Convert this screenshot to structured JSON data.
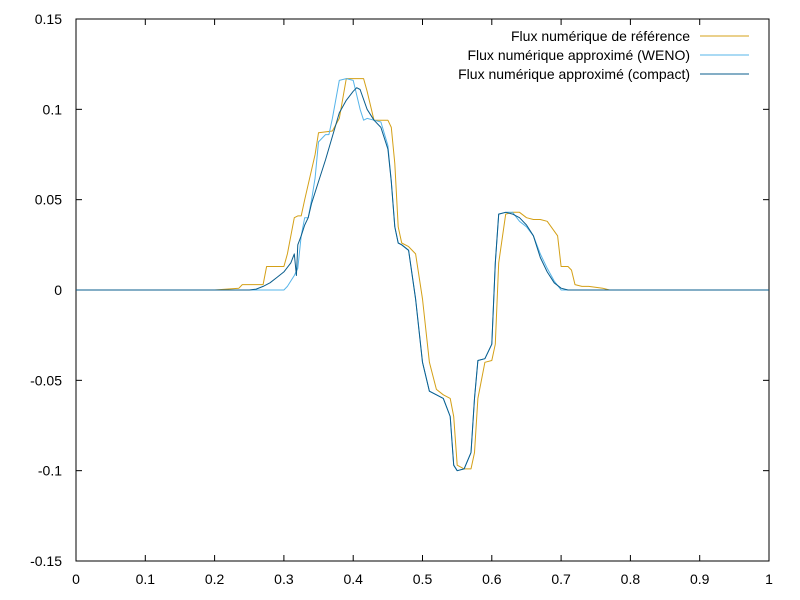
{
  "chart_data": {
    "type": "line",
    "title": "",
    "xlabel": "",
    "ylabel": "",
    "xlim": [
      0,
      1
    ],
    "ylim": [
      -0.15,
      0.15
    ],
    "xticks": [
      "0",
      "0.1",
      "0.2",
      "0.3",
      "0.4",
      "0.5",
      "0.6",
      "0.7",
      "0.8",
      "0.9",
      "1"
    ],
    "yticks": [
      "0.15",
      "0.1",
      "0.05",
      "0",
      "-0.05",
      "-0.1",
      "-0.15"
    ],
    "grid": false,
    "legend_position": "top-right",
    "series": [
      {
        "name": "Flux numérique de référence",
        "color": "#d4a017",
        "x": [
          0,
          0.2,
          0.235,
          0.24,
          0.27,
          0.275,
          0.3,
          0.305,
          0.315,
          0.32,
          0.325,
          0.33,
          0.345,
          0.35,
          0.37,
          0.38,
          0.39,
          0.4,
          0.41,
          0.415,
          0.42,
          0.43,
          0.44,
          0.45,
          0.455,
          0.46,
          0.465,
          0.47,
          0.48,
          0.49,
          0.5,
          0.51,
          0.52,
          0.53,
          0.54,
          0.545,
          0.55,
          0.56,
          0.57,
          0.575,
          0.58,
          0.59,
          0.6,
          0.605,
          0.61,
          0.62,
          0.63,
          0.64,
          0.65,
          0.66,
          0.67,
          0.68,
          0.695,
          0.7,
          0.71,
          0.715,
          0.72,
          0.73,
          0.735,
          0.74,
          0.76,
          0.765,
          0.77,
          0.8,
          1
        ],
        "y": [
          0,
          0,
          0.001,
          0.003,
          0.003,
          0.013,
          0.013,
          0.02,
          0.04,
          0.041,
          0.041,
          0.05,
          0.075,
          0.087,
          0.088,
          0.095,
          0.117,
          0.117,
          0.117,
          0.117,
          0.11,
          0.094,
          0.094,
          0.094,
          0.09,
          0.07,
          0.035,
          0.026,
          0.024,
          0.02,
          -0.005,
          -0.04,
          -0.055,
          -0.058,
          -0.06,
          -0.07,
          -0.097,
          -0.099,
          -0.099,
          -0.09,
          -0.06,
          -0.04,
          -0.039,
          -0.03,
          0.015,
          0.042,
          0.043,
          0.043,
          0.04,
          0.039,
          0.039,
          0.038,
          0.03,
          0.013,
          0.013,
          0.011,
          0.003,
          0.002,
          0.002,
          0.002,
          0.001,
          0.0005,
          0,
          0,
          0
        ]
      },
      {
        "name": "Flux numérique approximé (WENO)",
        "color": "#56b4e9",
        "x": [
          0,
          0.28,
          0.3,
          0.305,
          0.31,
          0.315,
          0.32,
          0.325,
          0.33,
          0.335,
          0.34,
          0.345,
          0.35,
          0.36,
          0.365,
          0.37,
          0.38,
          0.39,
          0.4,
          0.41,
          0.415,
          0.42,
          0.43,
          0.44,
          0.45,
          0.455,
          0.46,
          0.465,
          0.47,
          0.48,
          0.49,
          0.5,
          0.51,
          0.52,
          0.53,
          0.54,
          0.545,
          0.55,
          0.56,
          0.57,
          0.575,
          0.58,
          0.59,
          0.6,
          0.605,
          0.61,
          0.62,
          0.63,
          0.64,
          0.65,
          0.66,
          0.67,
          0.68,
          0.69,
          0.7,
          0.71,
          0.72,
          0.73,
          0.74,
          1
        ],
        "y": [
          0,
          0,
          0.0,
          0.002,
          0.005,
          0.008,
          0.012,
          0.03,
          0.04,
          0.04,
          0.05,
          0.062,
          0.082,
          0.086,
          0.086,
          0.095,
          0.116,
          0.117,
          0.116,
          0.1,
          0.094,
          0.095,
          0.094,
          0.093,
          0.08,
          0.06,
          0.035,
          0.026,
          0.025,
          0.022,
          -0.005,
          -0.04,
          -0.056,
          -0.058,
          -0.06,
          -0.07,
          -0.097,
          -0.1,
          -0.099,
          -0.09,
          -0.06,
          -0.039,
          -0.038,
          -0.03,
          0.015,
          0.042,
          0.043,
          0.043,
          0.038,
          0.035,
          0.03,
          0.02,
          0.012,
          0.005,
          0.0,
          0.0,
          0.0,
          0.0,
          0.0,
          0
        ]
      },
      {
        "name": "Flux numérique approximé (compact)",
        "color": "#0a5d8c",
        "x": [
          0,
          0.25,
          0.26,
          0.27,
          0.28,
          0.29,
          0.3,
          0.31,
          0.315,
          0.318,
          0.32,
          0.325,
          0.33,
          0.335,
          0.34,
          0.35,
          0.36,
          0.37,
          0.38,
          0.39,
          0.4,
          0.405,
          0.41,
          0.42,
          0.43,
          0.44,
          0.45,
          0.455,
          0.46,
          0.465,
          0.47,
          0.48,
          0.49,
          0.5,
          0.51,
          0.52,
          0.53,
          0.54,
          0.545,
          0.55,
          0.56,
          0.57,
          0.575,
          0.58,
          0.59,
          0.6,
          0.605,
          0.61,
          0.62,
          0.63,
          0.64,
          0.65,
          0.66,
          0.67,
          0.68,
          0.69,
          0.7,
          0.71,
          0.72,
          0.73,
          0.74,
          1
        ],
        "y": [
          0,
          0,
          0.0005,
          0.002,
          0.004,
          0.007,
          0.01,
          0.015,
          0.02,
          0.008,
          0.025,
          0.03,
          0.036,
          0.04,
          0.048,
          0.06,
          0.072,
          0.085,
          0.098,
          0.105,
          0.11,
          0.112,
          0.111,
          0.1,
          0.094,
          0.09,
          0.078,
          0.06,
          0.035,
          0.026,
          0.025,
          0.022,
          -0.005,
          -0.04,
          -0.056,
          -0.058,
          -0.06,
          -0.07,
          -0.097,
          -0.1,
          -0.099,
          -0.09,
          -0.06,
          -0.039,
          -0.038,
          -0.03,
          0.015,
          0.042,
          0.043,
          0.042,
          0.04,
          0.036,
          0.03,
          0.018,
          0.01,
          0.004,
          0.001,
          0.0,
          0.0,
          0.0,
          0.0,
          0
        ]
      }
    ]
  }
}
